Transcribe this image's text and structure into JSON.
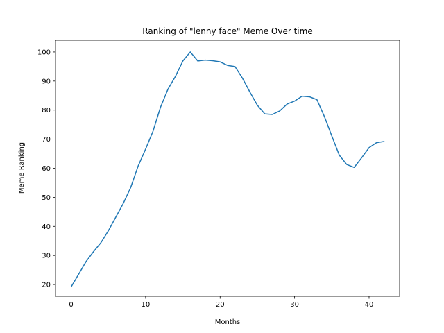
{
  "chart_data": {
    "type": "line",
    "title": "Ranking of \"lenny face\" Meme Over time",
    "xlabel": "Months",
    "ylabel": "Meme Ranking",
    "xlim": [
      -2.1,
      44.1
    ],
    "ylim": [
      15.96,
      104.04
    ],
    "xticks": [
      0,
      10,
      20,
      30,
      40
    ],
    "yticks": [
      20,
      30,
      40,
      50,
      60,
      70,
      80,
      90,
      100
    ],
    "grid": false,
    "legend": "none",
    "series": [
      {
        "color": "#1f77b4",
        "x": [
          0,
          1,
          2,
          3,
          4,
          5,
          6,
          7,
          8,
          9,
          10,
          11,
          12,
          13,
          14,
          15,
          16,
          17,
          18,
          19,
          20,
          21,
          22,
          23,
          24,
          25,
          26,
          27,
          28,
          29,
          30,
          31,
          32,
          33,
          34,
          35,
          36,
          37,
          38,
          39,
          40,
          41,
          42
        ],
        "values": [
          19.2,
          23.5,
          27.9,
          31.3,
          34.4,
          38.5,
          43.2,
          47.9,
          53.4,
          60.8,
          66.6,
          72.8,
          81.0,
          87.2,
          91.6,
          96.9,
          100.0,
          96.9,
          97.2,
          97.0,
          96.6,
          95.4,
          95.0,
          91.0,
          86.2,
          81.7,
          78.7,
          78.5,
          79.7,
          82.1,
          83.1,
          84.8,
          84.6,
          83.6,
          77.8,
          71.1,
          64.5,
          61.3,
          60.3,
          63.6,
          67.1,
          68.8,
          69.2
        ]
      }
    ]
  }
}
